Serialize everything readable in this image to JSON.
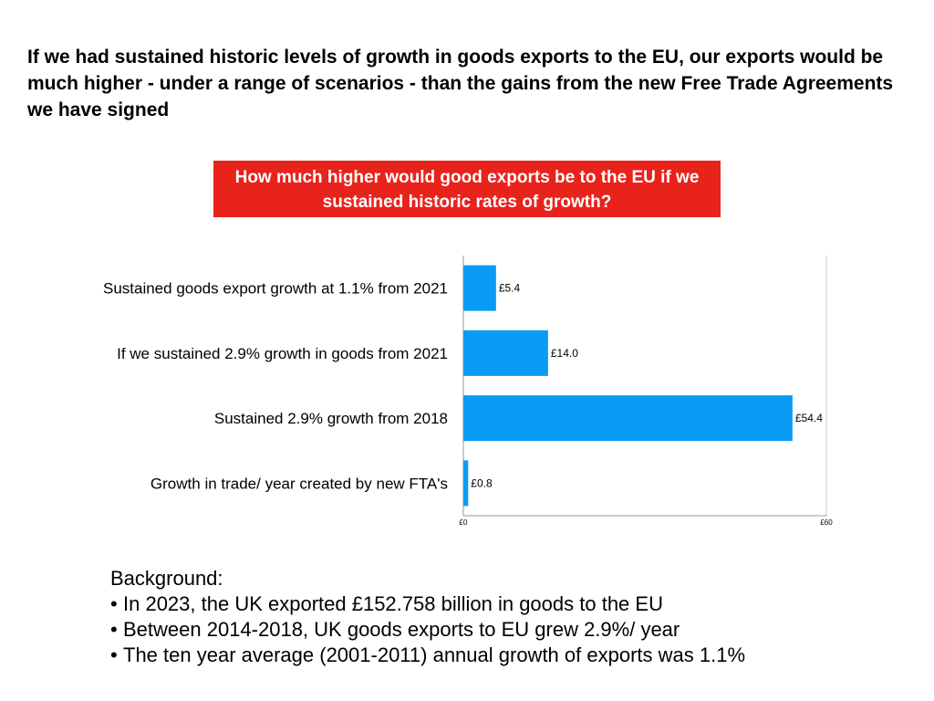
{
  "headline": "If we had sustained historic levels of growth in goods exports to the EU, our exports would be much higher - under a range of scenarios - than the gains from the new Free Trade Agreements we have signed",
  "chart_data": {
    "type": "bar",
    "orientation": "horizontal",
    "title": "How much higher would good exports be to the EU if we sustained historic rates of growth?",
    "title_background_color": "#e8231c",
    "bar_color": "#0a9bf5",
    "categories": [
      "Sustained goods export growth at 1.1% from 2021",
      "If we sustained 2.9% growth in goods from 2021",
      "Sustained 2.9% growth from 2018",
      "Growth in trade/ year created by new FTA's"
    ],
    "values": [
      5.4,
      14.0,
      54.4,
      0.8
    ],
    "data_labels": [
      "£5.4",
      "£14.0",
      "£54.4",
      "£0.8"
    ],
    "xlim": [
      0,
      60
    ],
    "x_tick_labels": [
      "£0",
      "£60"
    ],
    "grid": false,
    "legend": "none"
  },
  "background": {
    "heading": "Background:",
    "bullet_glyph": "•",
    "items": [
      "In 2023, the UK exported £152.758 billion in goods to the EU",
      "Between 2014-2018, UK goods exports to EU grew 2.9%/ year",
      "The ten year average (2001-2011) annual growth of exports was 1.1%"
    ]
  }
}
